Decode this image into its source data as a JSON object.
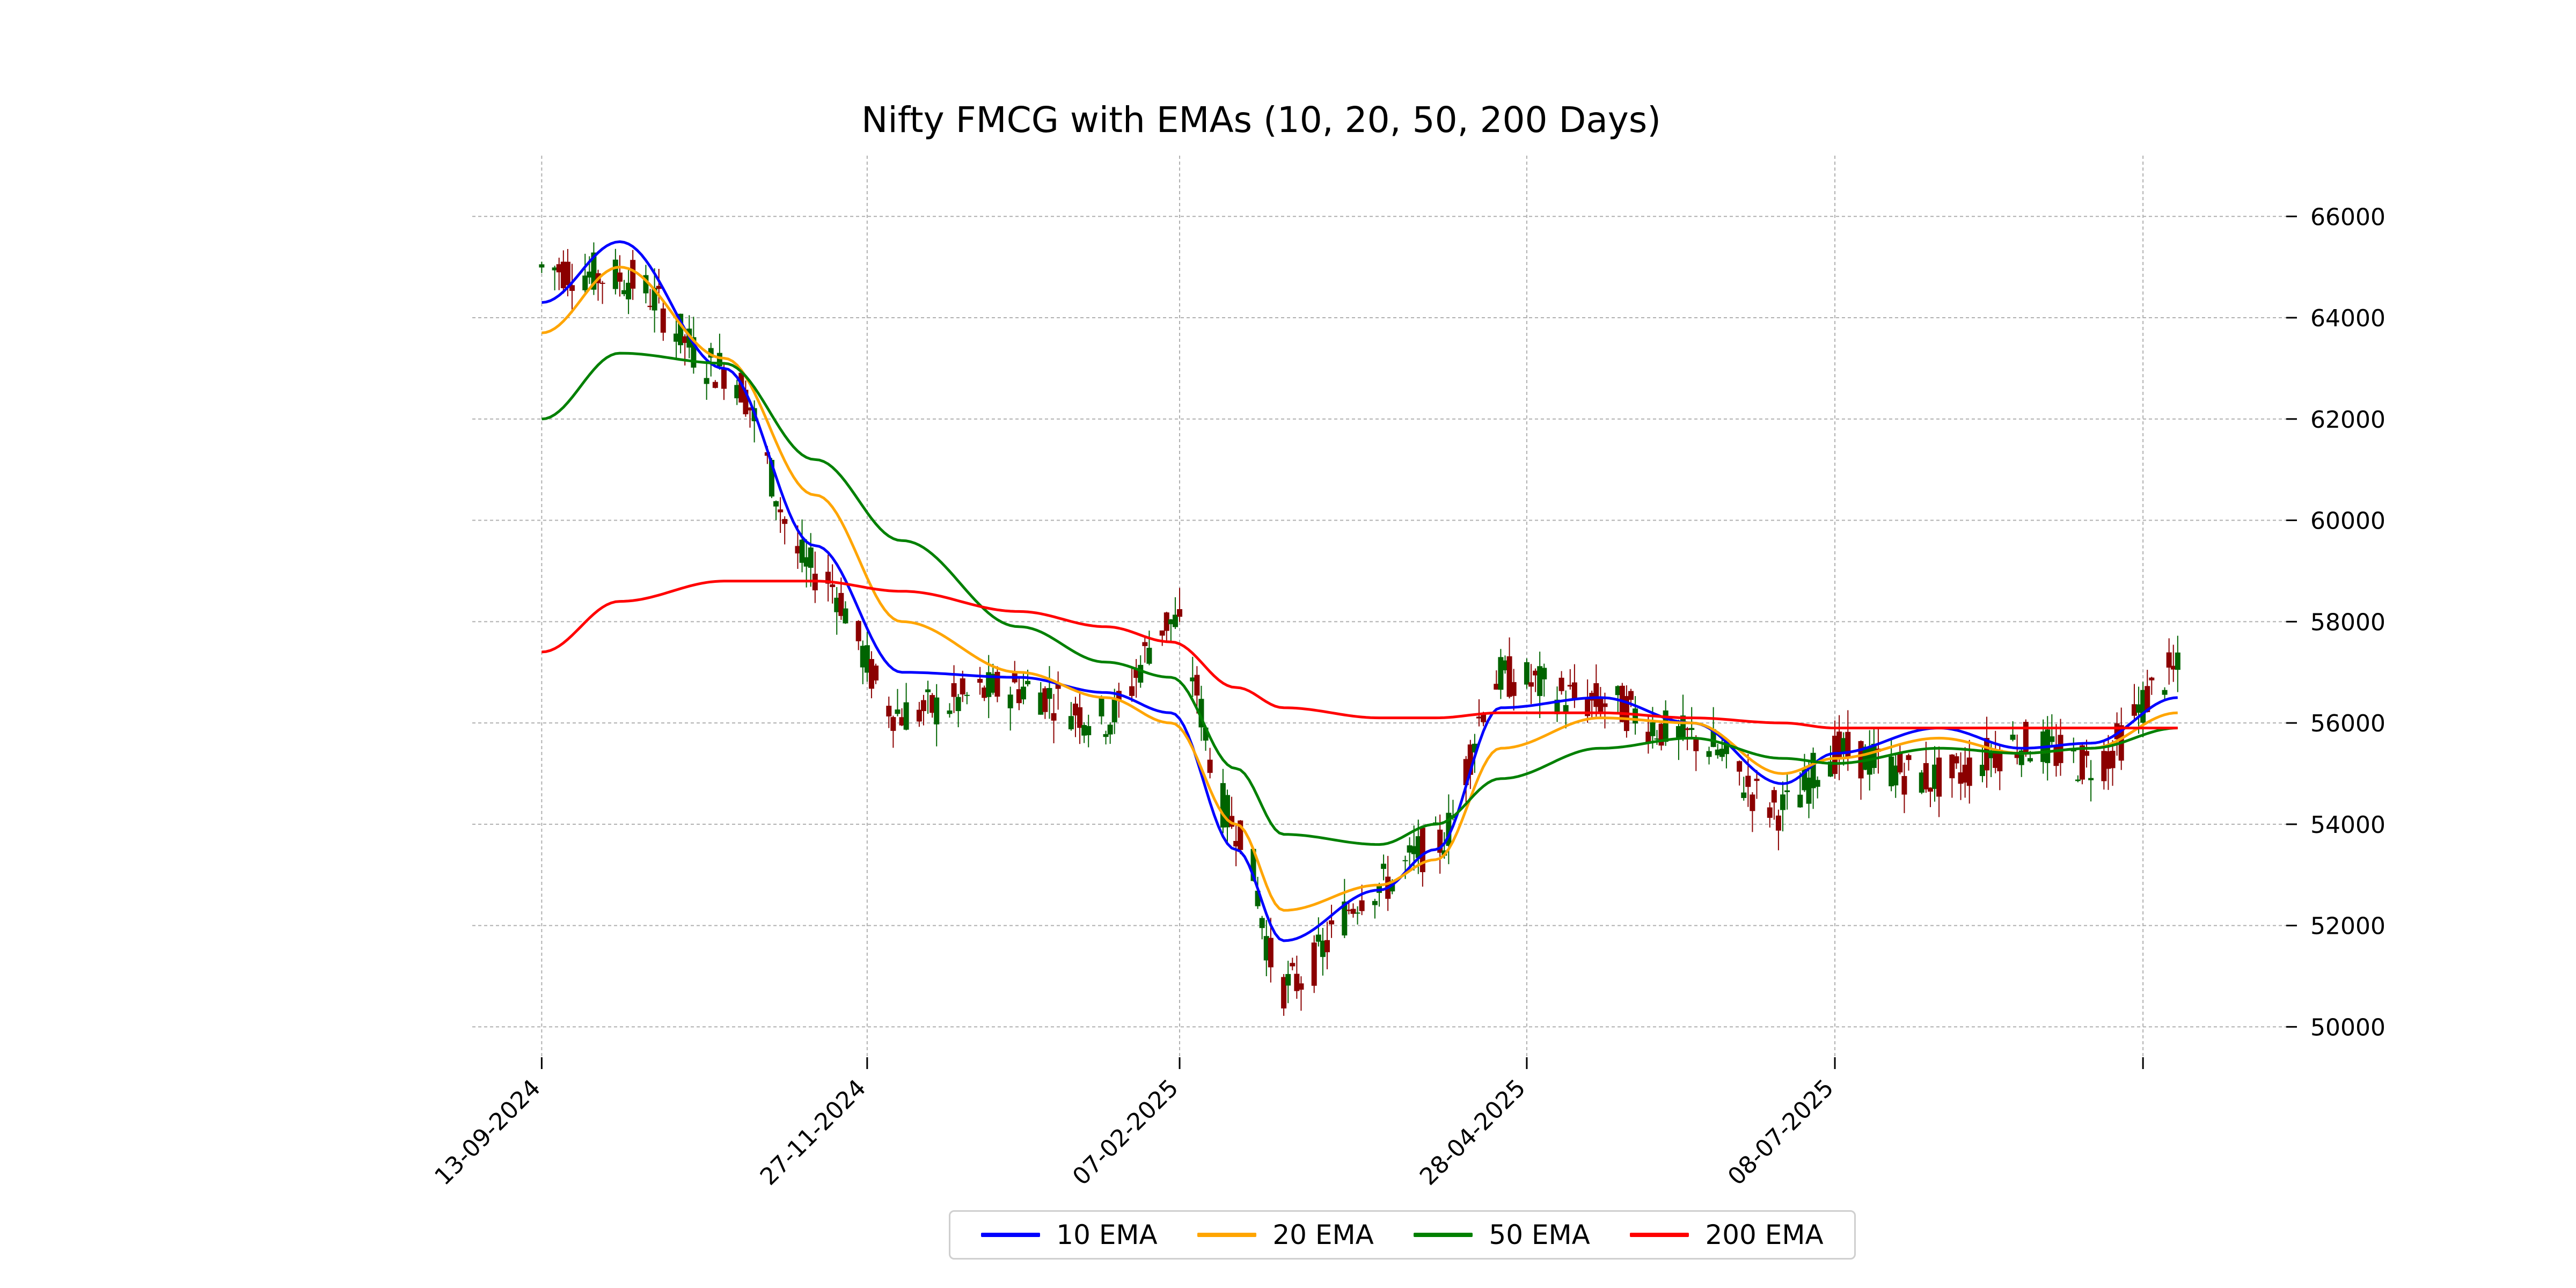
{
  "chart_data": {
    "type": "line",
    "title": "Nifty FMCG with EMAs (10, 20, 50, 200 Days)",
    "xlabel": "",
    "ylabel": "",
    "x_ticks": [
      "13-09-2024",
      "27-11-2024",
      "07-02-2025",
      "28-04-2025",
      "08-07-2025"
    ],
    "y_ticks": [
      50000,
      52000,
      54000,
      56000,
      58000,
      60000,
      62000,
      64000,
      66000
    ],
    "ylim": [
      49400,
      67200
    ],
    "xlim": [
      "2024-08-28",
      "2025-10-20"
    ],
    "grid": true,
    "legend_position": "bottom-center",
    "candles_up_color": "#006400",
    "candles_down_color": "#8b0000",
    "anchor_dates": [
      "2024-09-13",
      "2024-10-01",
      "2024-10-25",
      "2024-11-15",
      "2024-12-05",
      "2025-01-01",
      "2025-01-21",
      "2025-02-05",
      "2025-02-20",
      "2025-03-03",
      "2025-03-25",
      "2025-04-07",
      "2025-04-22",
      "2025-05-15",
      "2025-06-05",
      "2025-06-26",
      "2025-07-08",
      "2025-08-01",
      "2025-08-20",
      "2025-09-05",
      "2025-09-25"
    ],
    "candles_close": [
      65000,
      64800,
      63000,
      59000,
      56200,
      56700,
      56100,
      58000,
      54000,
      50800,
      52800,
      53600,
      56900,
      56400,
      55700,
      54300,
      55400,
      54900,
      55600,
      55200,
      57000
    ],
    "candles_open": [
      65600,
      65900,
      63600,
      60000,
      57400,
      56900,
      56700,
      57200,
      55100,
      51900,
      52400,
      53300,
      56100,
      56800,
      56100,
      54800,
      55100,
      55700,
      55400,
      55600,
      56500
    ],
    "series": [
      {
        "name": "10 EMA",
        "color": "#0000ff",
        "values": [
          64300,
          65500,
          63000,
          59500,
          57000,
          56900,
          56600,
          56200,
          53500,
          51700,
          52700,
          53500,
          56300,
          56500,
          56000,
          54800,
          55400,
          55900,
          55500,
          55600,
          56500
        ]
      },
      {
        "name": "20 EMA",
        "color": "#ffa500",
        "values": [
          63700,
          65000,
          63200,
          60500,
          58000,
          57000,
          56500,
          56000,
          54000,
          52300,
          52800,
          53300,
          55500,
          56100,
          56000,
          55000,
          55300,
          55700,
          55400,
          55500,
          56200
        ]
      },
      {
        "name": "50 EMA",
        "color": "#008000",
        "values": [
          62000,
          63300,
          63100,
          61200,
          59600,
          57900,
          57200,
          56900,
          55100,
          53800,
          53600,
          54000,
          54900,
          55500,
          55700,
          55300,
          55200,
          55500,
          55400,
          55500,
          55900
        ]
      },
      {
        "name": "200 EMA",
        "color": "#ff0000",
        "values": [
          57400,
          58400,
          58800,
          58800,
          58600,
          58200,
          57900,
          57600,
          56700,
          56300,
          56100,
          56100,
          56200,
          56200,
          56100,
          56000,
          55900,
          55900,
          55900,
          55900,
          55900
        ]
      }
    ]
  }
}
